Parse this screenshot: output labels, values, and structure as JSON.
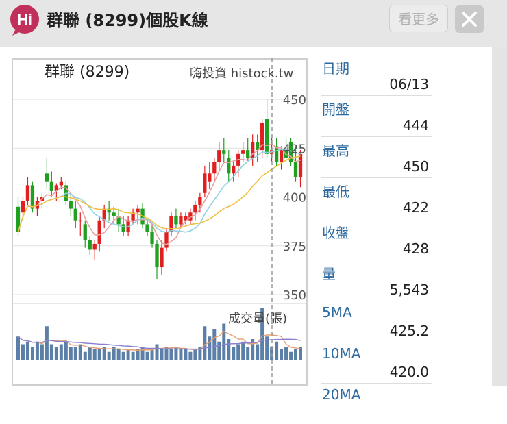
{
  "header": {
    "title": "群聯 (8299)個股K線",
    "more_button": "看更多",
    "logo_text": "Hi"
  },
  "chart": {
    "title": "群聯 (8299)",
    "brand": "嗨投資 histock.tw",
    "volume_label": "成交量(張)",
    "price_ticks": [
      "450",
      "425",
      "400",
      "375",
      "350"
    ]
  },
  "info_panel": {
    "rows": [
      {
        "label": "日期",
        "value": "06/13"
      },
      {
        "label": "開盤",
        "value": "444"
      },
      {
        "label": "最高",
        "value": "450"
      },
      {
        "label": "最低",
        "value": "422"
      },
      {
        "label": "收盤",
        "value": "428"
      },
      {
        "label": "量",
        "value": "5,543"
      },
      {
        "label": "5MA",
        "value": "425.2"
      },
      {
        "label": "10MA",
        "value": "420.0"
      },
      {
        "label": "20MA",
        "value": ""
      }
    ]
  },
  "chart_data": {
    "type": "candlestick",
    "price_axis": [
      350,
      450
    ],
    "candles": [
      [
        395,
        400,
        380,
        382
      ],
      [
        392,
        400,
        388,
        398
      ],
      [
        398,
        410,
        395,
        406
      ],
      [
        406,
        408,
        392,
        394
      ],
      [
        394,
        400,
        390,
        398
      ],
      [
        398,
        402,
        394,
        400
      ],
      [
        412,
        420,
        404,
        408
      ],
      [
        408,
        413,
        400,
        403
      ],
      [
        403,
        407,
        398,
        406
      ],
      [
        406,
        410,
        404,
        408
      ],
      [
        406,
        408,
        396,
        398
      ],
      [
        398,
        401,
        390,
        394
      ],
      [
        394,
        398,
        384,
        388
      ],
      [
        388,
        392,
        380,
        388
      ],
      [
        386,
        388,
        374,
        378
      ],
      [
        378,
        380,
        370,
        373
      ],
      [
        373,
        378,
        368,
        376
      ],
      [
        376,
        390,
        372,
        388
      ],
      [
        388,
        396,
        384,
        394
      ],
      [
        394,
        398,
        388,
        392
      ],
      [
        392,
        395,
        386,
        390
      ],
      [
        390,
        394,
        382,
        386
      ],
      [
        386,
        390,
        380,
        382
      ],
      [
        382,
        390,
        380,
        388
      ],
      [
        388,
        394,
        386,
        392
      ],
      [
        392,
        396,
        386,
        394
      ],
      [
        394,
        397,
        384,
        386
      ],
      [
        386,
        389,
        380,
        382
      ],
      [
        382,
        386,
        374,
        376
      ],
      [
        376,
        378,
        358,
        364
      ],
      [
        364,
        378,
        360,
        374
      ],
      [
        374,
        384,
        372,
        382
      ],
      [
        382,
        392,
        380,
        390
      ],
      [
        390,
        394,
        384,
        386
      ],
      [
        386,
        392,
        384,
        390
      ],
      [
        388,
        392,
        386,
        390
      ],
      [
        388,
        394,
        386,
        392
      ],
      [
        392,
        398,
        388,
        396
      ],
      [
        396,
        402,
        392,
        400
      ],
      [
        402,
        416,
        400,
        412
      ],
      [
        408,
        418,
        404,
        412
      ],
      [
        412,
        420,
        408,
        418
      ],
      [
        418,
        428,
        414,
        424
      ],
      [
        424,
        430,
        418,
        422
      ],
      [
        420,
        424,
        408,
        412
      ],
      [
        412,
        418,
        408,
        416
      ],
      [
        416,
        424,
        410,
        422
      ],
      [
        422,
        428,
        418,
        424
      ],
      [
        424,
        430,
        418,
        420
      ],
      [
        420,
        432,
        416,
        428
      ],
      [
        428,
        432,
        418,
        424
      ],
      [
        424,
        440,
        420,
        438
      ],
      [
        440,
        450,
        420,
        422
      ],
      [
        422,
        430,
        418,
        424
      ],
      [
        426,
        430,
        416,
        418
      ],
      [
        418,
        426,
        414,
        424
      ],
      [
        424,
        430,
        418,
        420
      ],
      [
        428,
        430,
        416,
        418
      ],
      [
        418,
        426,
        408,
        410
      ],
      [
        410,
        424,
        405,
        422
      ]
    ],
    "volumes": [
      45,
      30,
      35,
      25,
      35,
      30,
      65,
      30,
      25,
      30,
      35,
      25,
      25,
      30,
      15,
      25,
      20,
      20,
      25,
      15,
      25,
      20,
      15,
      20,
      15,
      20,
      25,
      15,
      20,
      30,
      20,
      25,
      20,
      25,
      20,
      20,
      15,
      20,
      25,
      65,
      45,
      60,
      35,
      70,
      40,
      25,
      30,
      35,
      25,
      40,
      30,
      100,
      45,
      25,
      35,
      20,
      25,
      15,
      20,
      25
    ],
    "ma5_color": "#e8a0a0",
    "ma10_color": "#8fd1e0",
    "ma20_color": "#f0c040"
  },
  "colors": {
    "up": "#e02020",
    "down": "#20a020",
    "volume": "#5b7fa6"
  }
}
